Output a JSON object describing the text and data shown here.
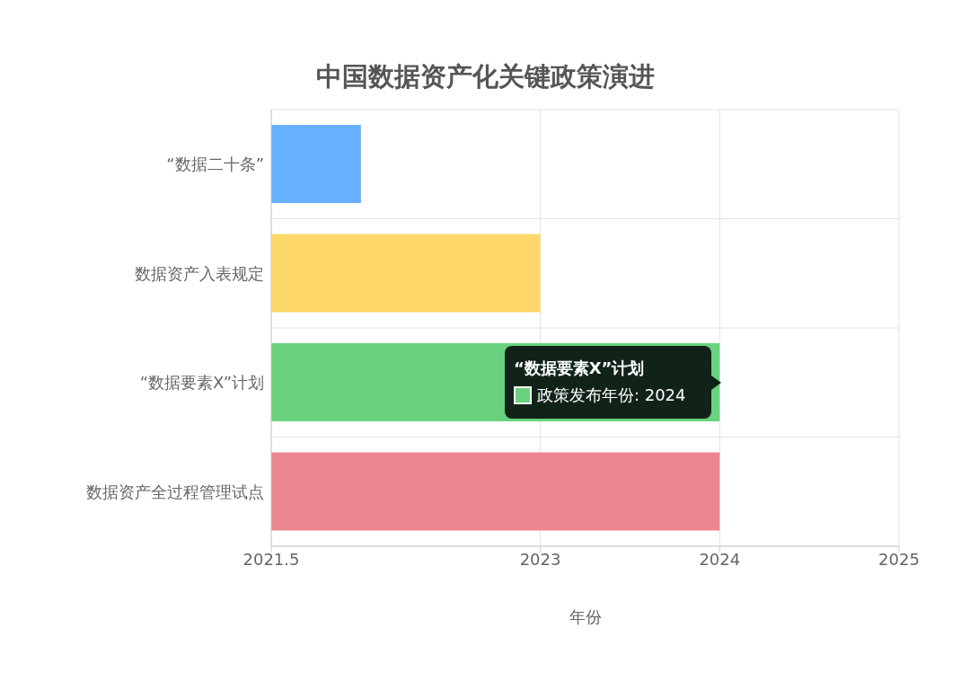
{
  "chart_data": {
    "type": "bar",
    "orientation": "horizontal",
    "title": "中国数据资产化关键政策演进",
    "xlabel": "年份",
    "categories": [
      "“数据二十条”",
      "数据资产入表规定",
      "“数据要素X”计划",
      "数据资产全过程管理试点"
    ],
    "values": [
      2022,
      2023,
      2024,
      2024
    ],
    "colors": [
      "#66b0ff",
      "#fdd76a",
      "#6ad27f",
      "#ec8690"
    ],
    "xlim": [
      2021.5,
      2025
    ],
    "xticks": [
      2021.5,
      2023,
      2024,
      2025
    ],
    "grid": true,
    "legend": false,
    "annotations": [
      "“数据要素X”计划",
      "政策发布年份: 2024"
    ]
  }
}
